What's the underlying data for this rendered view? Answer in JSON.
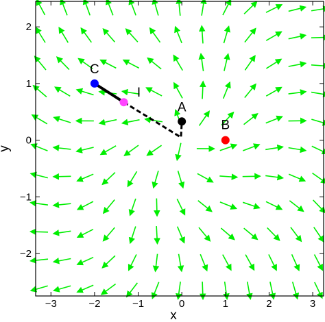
{
  "chart_data": {
    "type": "vector_field",
    "title": "",
    "xlabel": "x",
    "ylabel": "y",
    "xlim": [
      -3.35,
      3.25
    ],
    "ylim": [
      -2.75,
      2.45
    ],
    "xticks": [
      -3,
      -2,
      -1,
      0,
      1,
      2,
      3
    ],
    "yticks": [
      -2,
      -1,
      0,
      1,
      2
    ],
    "xtick_labels": [
      "−3",
      "−2",
      "−1",
      "0",
      "1",
      "2",
      "3"
    ],
    "ytick_labels": [
      "−2",
      "−1",
      "0",
      "1",
      "2"
    ],
    "grid": false,
    "field_color": "#00ee00",
    "field": {
      "description_free": true,
      "x_range": [
        -3.2,
        3.1
      ],
      "y_range": [
        -2.6,
        2.3
      ],
      "nx": 13,
      "ny": 11,
      "source": [
        0,
        0
      ]
    },
    "points": [
      {
        "label": "A",
        "x": 0.0,
        "y": 0.33,
        "color": "#000000"
      },
      {
        "label": "B",
        "x": 1.0,
        "y": 0.0,
        "color": "#ff0000"
      },
      {
        "label": "C",
        "x": -2.0,
        "y": 1.0,
        "color": "#0000ff"
      },
      {
        "label": "I",
        "x": -1.33,
        "y": 0.67,
        "color": "#ff44ff"
      }
    ],
    "paths": [
      {
        "style": "solid",
        "color": "#000000",
        "points": [
          [
            -2.0,
            1.0
          ],
          [
            -1.33,
            0.67
          ]
        ]
      },
      {
        "style": "dashed",
        "color": "#000000",
        "points": [
          [
            -1.33,
            0.67
          ],
          [
            -0.02,
            0.05
          ],
          [
            0.0,
            0.33
          ]
        ]
      }
    ]
  }
}
